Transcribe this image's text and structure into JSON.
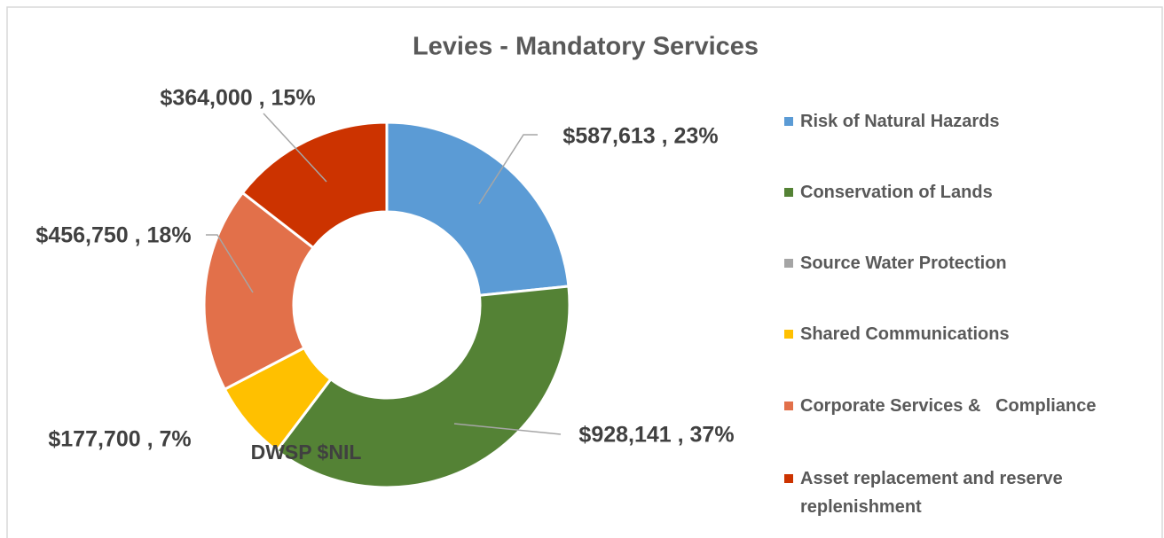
{
  "chart_data": {
    "type": "donut",
    "title": "Levies - Mandatory Services",
    "categories": [
      "Risk of Natural Hazards",
      "Conservation of Lands",
      "Source Water Protection",
      "Shared Communications",
      "Corporate Services &   Compliance",
      "Asset replacement and reserve replenishment"
    ],
    "values": [
      587613,
      928141,
      0,
      177700,
      456750,
      364000
    ],
    "value_labels": [
      "$587,613 , 23%",
      "$928,141 , 37%",
      "DWSP $NIL",
      "$177,700 , 7%",
      "$456,750 , 18%",
      "$364,000 , 15%"
    ],
    "colors": [
      "#5b9bd5",
      "#548235",
      "#a5a5a5",
      "#ffc000",
      "#e2704a",
      "#cc3300"
    ],
    "legend": "right"
  }
}
